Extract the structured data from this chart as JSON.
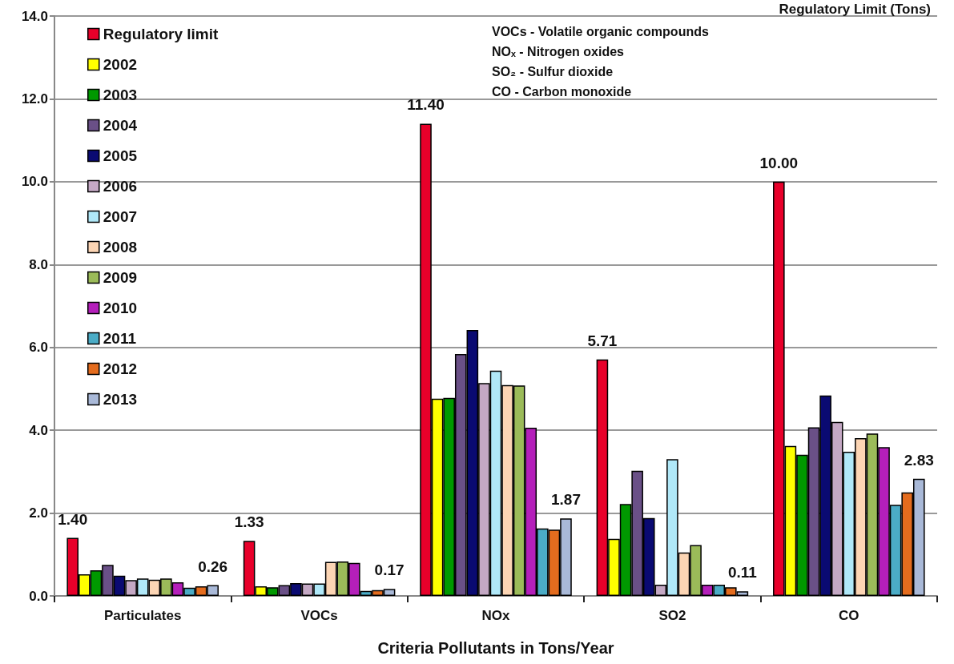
{
  "chart_data": {
    "type": "bar",
    "title": "Regulatory Limit (Tons)",
    "xlabel": "Criteria Pollutants in Tons/Year",
    "categories": [
      "Particulates",
      "VOCs",
      "NOx",
      "SO2",
      "CO"
    ],
    "series": [
      {
        "name": "Regulatory limit",
        "color": "#e8002a",
        "values": [
          1.4,
          1.33,
          11.4,
          5.71,
          10.0
        ],
        "value_labels": [
          "1.40",
          "1.33",
          "11.40",
          "5.71",
          "10.00"
        ]
      },
      {
        "name": "2002",
        "color": "#ffff00",
        "values": [
          0.52,
          0.23,
          4.76,
          1.38,
          3.62
        ]
      },
      {
        "name": "2003",
        "color": "#009900",
        "values": [
          0.62,
          0.21,
          4.78,
          2.22,
          3.41
        ]
      },
      {
        "name": "2004",
        "color": "#6a5087",
        "values": [
          0.75,
          0.26,
          5.84,
          3.02,
          4.07
        ]
      },
      {
        "name": "2005",
        "color": "#0a0a72",
        "values": [
          0.49,
          0.31,
          6.42,
          1.88,
          4.84
        ]
      },
      {
        "name": "2006",
        "color": "#c4a8c4",
        "values": [
          0.38,
          0.3,
          5.14,
          0.27,
          4.2
        ]
      },
      {
        "name": "2007",
        "color": "#b0e8f8",
        "values": [
          0.42,
          0.3,
          5.44,
          3.3,
          3.48
        ]
      },
      {
        "name": "2008",
        "color": "#fcd5b4",
        "values": [
          0.39,
          0.82,
          5.09,
          1.05,
          3.81
        ]
      },
      {
        "name": "2009",
        "color": "#9bbb59",
        "values": [
          0.42,
          0.83,
          5.08,
          1.23,
          3.92
        ]
      },
      {
        "name": "2010",
        "color": "#b41fba",
        "values": [
          0.33,
          0.8,
          4.06,
          0.27,
          3.59
        ]
      },
      {
        "name": "2011",
        "color": "#4bacc6",
        "values": [
          0.2,
          0.12,
          1.63,
          0.27,
          2.2
        ]
      },
      {
        "name": "2012",
        "color": "#e46c1e",
        "values": [
          0.23,
          0.14,
          1.6,
          0.21,
          2.5
        ]
      },
      {
        "name": "2013",
        "color": "#a9b9d8",
        "values": [
          0.26,
          0.17,
          1.87,
          0.11,
          2.83
        ],
        "value_labels": [
          "0.26",
          "0.17",
          "1.87",
          "0.11",
          "2.83"
        ]
      }
    ],
    "ylim": [
      0,
      14
    ],
    "yticks": [
      {
        "value": 0,
        "label": "0.0"
      },
      {
        "value": 2,
        "label": "2.0"
      },
      {
        "value": 4,
        "label": "4.0"
      },
      {
        "value": 6,
        "label": "6.0"
      },
      {
        "value": 8,
        "label": "8.0"
      },
      {
        "value": 10,
        "label": "10.0"
      },
      {
        "value": 12,
        "label": "12.0"
      },
      {
        "value": 14,
        "label": "14.0"
      }
    ],
    "grid": "y",
    "legend": "top left",
    "annotations": [
      "VOCs - Volatile organic compounds",
      "NOₓ - Nitrogen oxides",
      "SO₂ - Sulfur dioxide",
      "CO - Carbon monoxide"
    ]
  }
}
